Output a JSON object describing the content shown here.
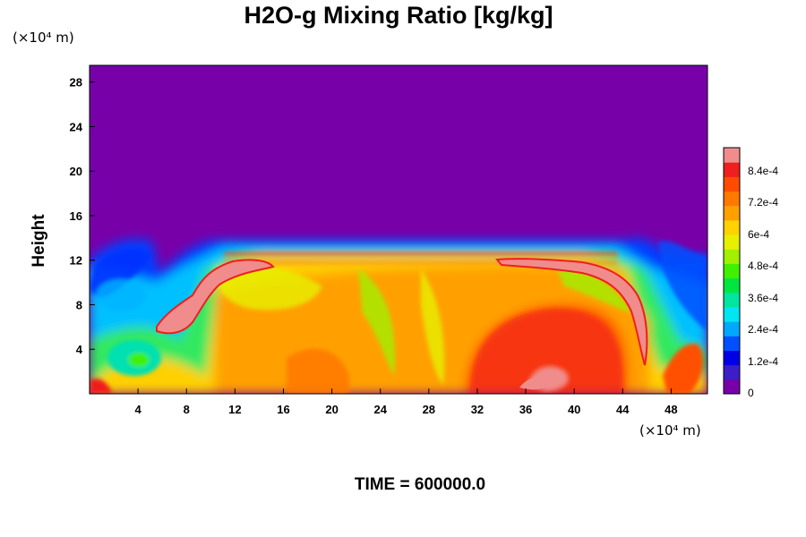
{
  "chart_data": {
    "type": "heatmap",
    "title": "H2O-g Mixing Ratio [kg/kg]",
    "ylabel": "Height",
    "x_unit": "(×10⁴ m)",
    "y_unit": "(×10⁴ m)",
    "x_ticks": [
      4,
      8,
      12,
      16,
      20,
      24,
      28,
      32,
      36,
      40,
      44,
      48
    ],
    "y_ticks": [
      4,
      8,
      12,
      16,
      20,
      24,
      28
    ],
    "xlim": [
      0,
      51
    ],
    "ylim": [
      0,
      29.5
    ],
    "colorbar": {
      "labels": [
        "0",
        "1.2e-4",
        "2.4e-4",
        "3.6e-4",
        "4.8e-4",
        "6e-4",
        "7.2e-4",
        "8.4e-4"
      ],
      "range": [
        0,
        0.00093
      ],
      "colors": [
        "#7800a8",
        "#3c1ec8",
        "#0000e6",
        "#0050ff",
        "#00a8ff",
        "#00e6f0",
        "#00e6a0",
        "#00e640",
        "#40f000",
        "#a0f000",
        "#e6f000",
        "#ffd200",
        "#ffa000",
        "#ff7800",
        "#ff4b00",
        "#f01e1e",
        "#f08c8c"
      ]
    },
    "annotation": "TIME = 600000.0"
  }
}
